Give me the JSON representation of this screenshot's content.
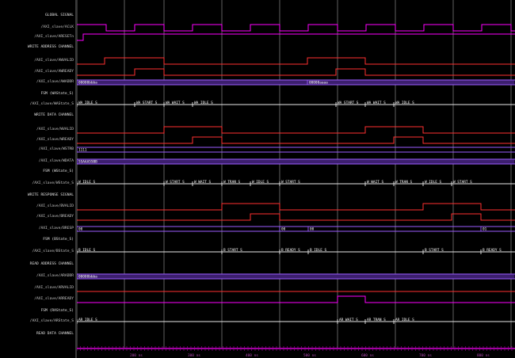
{
  "signals": [
    {
      "name": "GLOBAL SIGNAL",
      "group": true
    },
    {
      "name": "/AXI_slave/ACLK",
      "group": false
    },
    {
      "name": "/AXI_slave/ARESETn",
      "group": false
    },
    {
      "name": "WRITE ADDRESS CHANNEL",
      "group": true
    },
    {
      "name": "/AXI_slave/AWVALID",
      "group": false
    },
    {
      "name": "/AXI_slave/AWREADY",
      "group": false
    },
    {
      "name": "/AXI_slave/AWADDR",
      "group": false
    },
    {
      "name": "FSM (WAState_S)",
      "group": true
    },
    {
      "name": "/AXI_slave/WAState_S",
      "group": false
    },
    {
      "name": "WRITE DATA CHANNEL",
      "group": true
    },
    {
      "name": "/AXI_slave/WVALID",
      "group": false
    },
    {
      "name": "/AXI_slave/WREADY",
      "group": false
    },
    {
      "name": "/AXI_slave/WSTRB",
      "group": false
    },
    {
      "name": "/AXI_slave/WDATA",
      "group": false
    },
    {
      "name": "FSM (WState_S)",
      "group": true
    },
    {
      "name": "/AXI_slave/WState_S",
      "group": false
    },
    {
      "name": "WRITE RESPONSE SIGNAL",
      "group": true
    },
    {
      "name": "/AXI_slave/BVALID",
      "group": false
    },
    {
      "name": "/AXI_slave/BREADY",
      "group": false
    },
    {
      "name": "/AXI_slave/BRESP",
      "group": false
    },
    {
      "name": "FSM (BState_S)",
      "group": true
    },
    {
      "name": "/AXI_slave/BState_S",
      "group": false
    },
    {
      "name": "READ ADDRESS CHANNEL",
      "group": true
    },
    {
      "name": "/AXI_slave/ARADDR",
      "group": false
    },
    {
      "name": "/AXI_slave/ARVALID",
      "group": false
    },
    {
      "name": "/AXI_slave/ARREADY",
      "group": false
    },
    {
      "name": "FSM (RAState_S)",
      "group": true
    },
    {
      "name": "/AXI_slave/ARState_S",
      "group": false
    },
    {
      "name": "READ DATA CHANNEL",
      "group": true
    }
  ],
  "bus_labels": {
    "awaddr_a": "00000bbba",
    "awaddr_b": "00000aaaa",
    "wastate_idle": "WA_IDLE_S",
    "wastate_start": "WA_START_S",
    "wastate_wait": "WA_WAIT_S",
    "wstrb": "1111",
    "wdata": "55AAA55BB",
    "wstate_idle": "W_IDLE_S",
    "wstate_start": "W_START_S",
    "wstate_wait": "W_WAIT_S",
    "wstate_trans": "W_TRAN_S",
    "bresp_0": "00",
    "bresp_1": "00",
    "bresp_2": "00",
    "bresp_3": "01",
    "bstate_idle": "B_IDLE_S",
    "bstate_start": "B_START_S",
    "bstate_ready": "B_READY_S",
    "araddr": "00000bbba",
    "arstate_idle": "AR_IDLE_S",
    "arstate_wait": "AR_WAIT_S",
    "arstate_trans": "AR_TRAN_S"
  },
  "time_ticks": [
    "200 ns",
    "300 ns",
    "400 ns",
    "500 ns",
    "600 ns",
    "700 ns",
    "800 ns"
  ],
  "colors": {
    "background": "#000000",
    "clock": "#ff00ff",
    "bus": "#9b5cff",
    "bus_fill": "#3c1f6e",
    "valid_ready": "#ff3030",
    "state_lines": "#e8e8e8",
    "timeline": "#a000a0",
    "names": "#c8c8c8"
  }
}
